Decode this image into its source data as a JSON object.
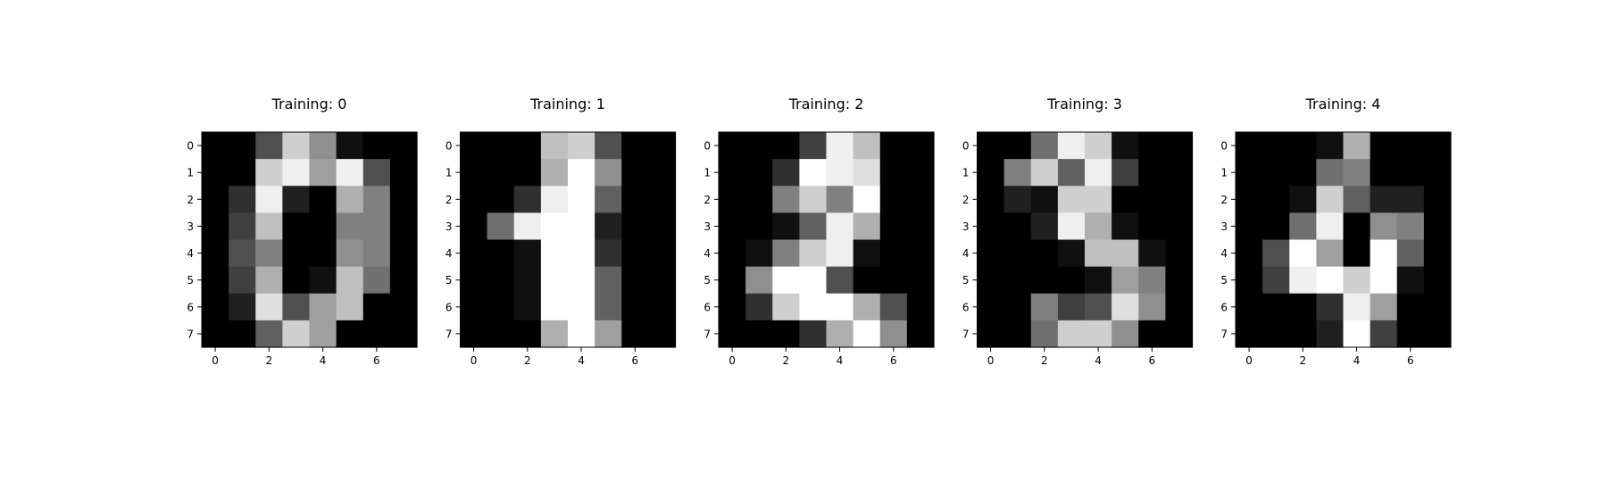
{
  "chart_data": [
    {
      "type": "heatmap",
      "title": "Training: 0",
      "x_ticks": [
        "0",
        "2",
        "4",
        "6"
      ],
      "y_ticks": [
        "0",
        "1",
        "2",
        "3",
        "4",
        "5",
        "6",
        "7"
      ],
      "colormap": "gray_r",
      "vmin": 0,
      "vmax": 16,
      "grid": false,
      "values": [
        [
          0,
          0,
          5,
          13,
          9,
          1,
          0,
          0
        ],
        [
          0,
          0,
          13,
          15,
          10,
          15,
          5,
          0
        ],
        [
          0,
          3,
          15,
          2,
          0,
          11,
          8,
          0
        ],
        [
          0,
          4,
          12,
          0,
          0,
          8,
          8,
          0
        ],
        [
          0,
          5,
          8,
          0,
          0,
          9,
          8,
          0
        ],
        [
          0,
          4,
          11,
          0,
          1,
          12,
          7,
          0
        ],
        [
          0,
          2,
          14,
          5,
          10,
          12,
          0,
          0
        ],
        [
          0,
          0,
          6,
          13,
          10,
          0,
          0,
          0
        ]
      ]
    },
    {
      "type": "heatmap",
      "title": "Training: 1",
      "x_ticks": [
        "0",
        "2",
        "4",
        "6"
      ],
      "y_ticks": [
        "0",
        "1",
        "2",
        "3",
        "4",
        "5",
        "6",
        "7"
      ],
      "colormap": "gray_r",
      "vmin": 0,
      "vmax": 16,
      "grid": false,
      "values": [
        [
          0,
          0,
          0,
          12,
          13,
          5,
          0,
          0
        ],
        [
          0,
          0,
          0,
          11,
          16,
          9,
          0,
          0
        ],
        [
          0,
          0,
          3,
          15,
          16,
          6,
          0,
          0
        ],
        [
          0,
          7,
          15,
          16,
          16,
          2,
          0,
          0
        ],
        [
          0,
          0,
          1,
          16,
          16,
          3,
          0,
          0
        ],
        [
          0,
          0,
          1,
          16,
          16,
          6,
          0,
          0
        ],
        [
          0,
          0,
          1,
          16,
          16,
          6,
          0,
          0
        ],
        [
          0,
          0,
          0,
          11,
          16,
          10,
          0,
          0
        ]
      ]
    },
    {
      "type": "heatmap",
      "title": "Training: 2",
      "x_ticks": [
        "0",
        "2",
        "4",
        "6"
      ],
      "y_ticks": [
        "0",
        "1",
        "2",
        "3",
        "4",
        "5",
        "6",
        "7"
      ],
      "colormap": "gray_r",
      "vmin": 0,
      "vmax": 16,
      "grid": false,
      "values": [
        [
          0,
          0,
          0,
          4,
          15,
          12,
          0,
          0
        ],
        [
          0,
          0,
          3,
          16,
          15,
          14,
          0,
          0
        ],
        [
          0,
          0,
          8,
          13,
          8,
          16,
          0,
          0
        ],
        [
          0,
          0,
          1,
          6,
          15,
          11,
          0,
          0
        ],
        [
          0,
          1,
          8,
          13,
          15,
          1,
          0,
          0
        ],
        [
          0,
          9,
          16,
          16,
          5,
          0,
          0,
          0
        ],
        [
          0,
          3,
          13,
          16,
          16,
          11,
          5,
          0
        ],
        [
          0,
          0,
          0,
          3,
          11,
          16,
          9,
          0
        ]
      ]
    },
    {
      "type": "heatmap",
      "title": "Training: 3",
      "x_ticks": [
        "0",
        "2",
        "4",
        "6"
      ],
      "y_ticks": [
        "0",
        "1",
        "2",
        "3",
        "4",
        "5",
        "6",
        "7"
      ],
      "colormap": "gray_r",
      "vmin": 0,
      "vmax": 16,
      "grid": false,
      "values": [
        [
          0,
          0,
          7,
          15,
          13,
          1,
          0,
          0
        ],
        [
          0,
          8,
          13,
          6,
          15,
          4,
          0,
          0
        ],
        [
          0,
          2,
          1,
          13,
          13,
          0,
          0,
          0
        ],
        [
          0,
          0,
          2,
          15,
          11,
          1,
          0,
          0
        ],
        [
          0,
          0,
          0,
          1,
          12,
          12,
          1,
          0
        ],
        [
          0,
          0,
          0,
          0,
          1,
          10,
          8,
          0
        ],
        [
          0,
          0,
          8,
          4,
          5,
          14,
          9,
          0
        ],
        [
          0,
          0,
          7,
          13,
          13,
          9,
          0,
          0
        ]
      ]
    },
    {
      "type": "heatmap",
      "title": "Training: 4",
      "x_ticks": [
        "0",
        "2",
        "4",
        "6"
      ],
      "y_ticks": [
        "0",
        "1",
        "2",
        "3",
        "4",
        "5",
        "6",
        "7"
      ],
      "colormap": "gray_r",
      "vmin": 0,
      "vmax": 16,
      "grid": false,
      "values": [
        [
          0,
          0,
          0,
          1,
          11,
          0,
          0,
          0
        ],
        [
          0,
          0,
          0,
          7,
          8,
          0,
          0,
          0
        ],
        [
          0,
          0,
          1,
          13,
          6,
          2,
          2,
          0
        ],
        [
          0,
          0,
          7,
          15,
          0,
          9,
          8,
          0
        ],
        [
          0,
          5,
          16,
          10,
          0,
          16,
          6,
          0
        ],
        [
          0,
          4,
          15,
          16,
          13,
          16,
          1,
          0
        ],
        [
          0,
          0,
          0,
          3,
          15,
          10,
          0,
          0
        ],
        [
          0,
          0,
          0,
          2,
          16,
          4,
          0,
          0
        ]
      ]
    }
  ]
}
